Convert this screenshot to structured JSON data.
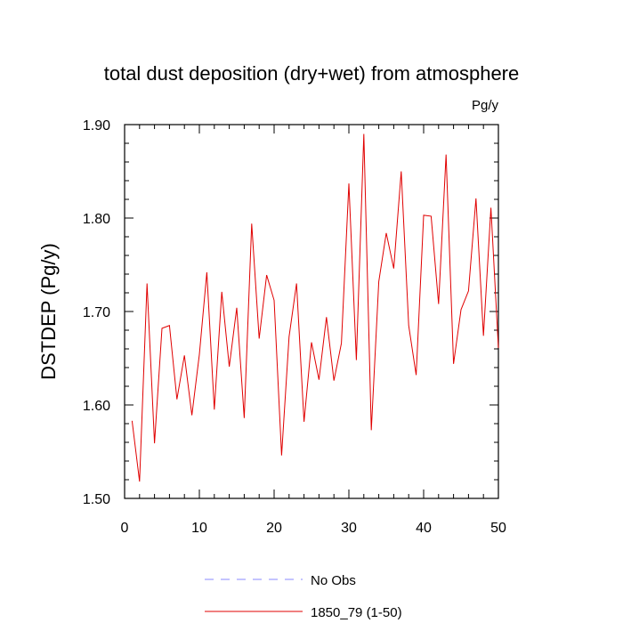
{
  "chart_data": {
    "type": "line",
    "title": "total dust deposition (dry+wet) from atmosphere",
    "units_label": "Pg/y",
    "xlabel": "",
    "ylabel": "DSTDEP  (Pg/y)",
    "xlim": [
      0,
      50
    ],
    "ylim": [
      1.5,
      1.9
    ],
    "x_ticks": [
      0,
      10,
      20,
      30,
      40,
      50
    ],
    "x_tick_labels": [
      "0",
      "10",
      "20",
      "30",
      "40",
      "50"
    ],
    "y_ticks": [
      1.5,
      1.6,
      1.7,
      1.8,
      1.9
    ],
    "y_tick_labels": [
      "1.50",
      "1.60",
      "1.70",
      "1.80",
      "1.90"
    ],
    "grid": false,
    "legend_position": "bottom",
    "series": [
      {
        "name": "1850_79 (1-50)",
        "color": "#e00000",
        "dash": "solid",
        "x": [
          1,
          2,
          3,
          4,
          5,
          6,
          7,
          8,
          9,
          10,
          11,
          12,
          13,
          14,
          15,
          16,
          17,
          18,
          19,
          20,
          21,
          22,
          23,
          24,
          25,
          26,
          27,
          28,
          29,
          30,
          31,
          32,
          33,
          34,
          35,
          36,
          37,
          38,
          39,
          40,
          41,
          42,
          43,
          44,
          45,
          46,
          47,
          48,
          49,
          50
        ],
        "y": [
          1.583,
          1.518,
          1.73,
          1.559,
          1.682,
          1.685,
          1.606,
          1.653,
          1.589,
          1.654,
          1.742,
          1.595,
          1.721,
          1.641,
          1.704,
          1.586,
          1.794,
          1.671,
          1.739,
          1.712,
          1.546,
          1.673,
          1.73,
          1.582,
          1.667,
          1.627,
          1.694,
          1.626,
          1.666,
          1.837,
          1.648,
          1.89,
          1.573,
          1.732,
          1.784,
          1.746,
          1.85,
          1.685,
          1.632,
          1.803,
          1.802,
          1.708,
          1.868,
          1.644,
          1.702,
          1.722,
          1.821,
          1.674,
          1.811,
          1.661
        ]
      }
    ],
    "legend": [
      {
        "label": "No Obs",
        "color": "#8888ff",
        "dash": "dashed"
      },
      {
        "label": "1850_79 (1-50)",
        "color": "#e00000",
        "dash": "solid"
      }
    ]
  }
}
